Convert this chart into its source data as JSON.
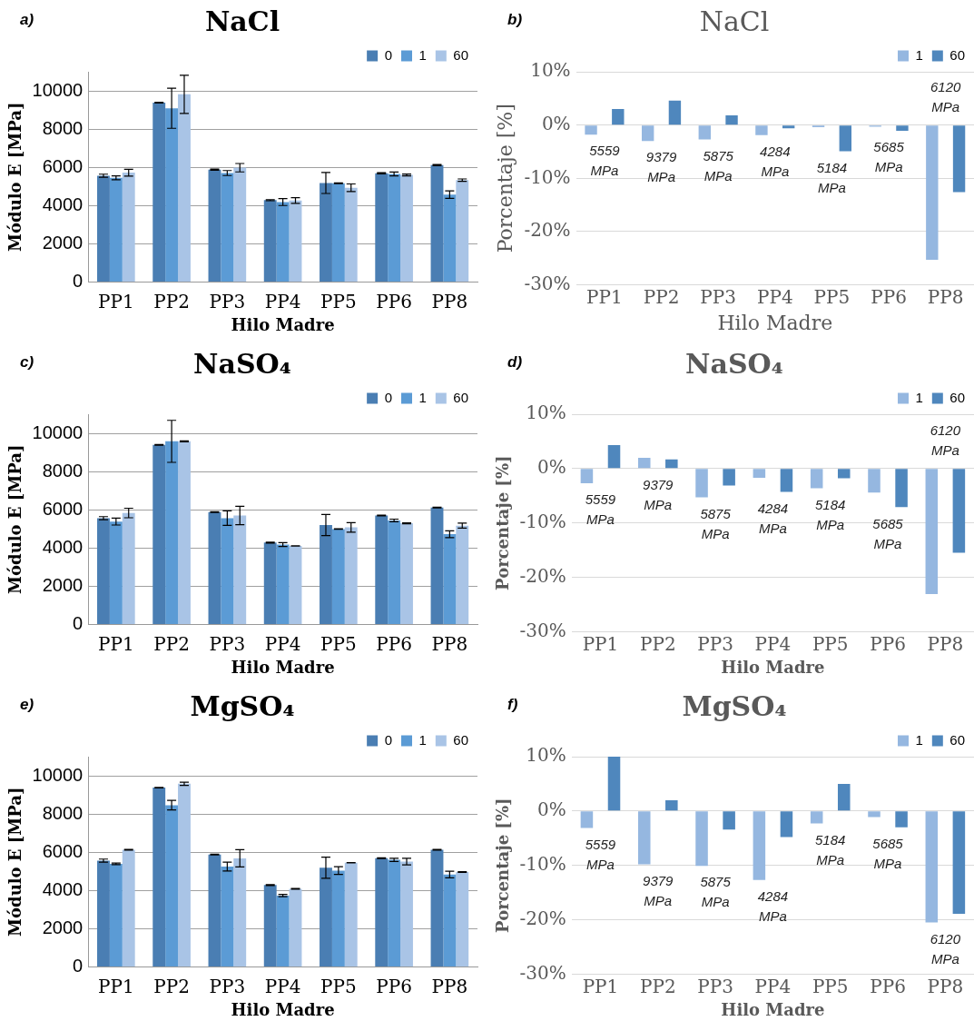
{
  "chart_data": [
    {
      "type": "bar",
      "title": "NaCl",
      "xlabel": "Hilo Madre",
      "ylabel": "Módulo E [MPa]",
      "categories": [
        "PP1",
        "PP2",
        "PP3",
        "PP4",
        "PP5",
        "PP6",
        "PP8"
      ],
      "ylim": [
        0,
        11000
      ],
      "yticks": [
        0,
        2000,
        4000,
        6000,
        8000,
        10000
      ],
      "grid": "y",
      "legend": "top right",
      "annotations": [
        "a)"
      ],
      "series": [
        {
          "name": "0",
          "color": "#4a7eb3",
          "values": [
            5560,
            9380,
            5880,
            4280,
            5180,
            5690,
            6120
          ],
          "errors": [
            80,
            20,
            30,
            30,
            550,
            30,
            30
          ]
        },
        {
          "name": "1",
          "color": "#5b9bd5",
          "values": [
            5450,
            9090,
            5700,
            4180,
            5160,
            5650,
            4570
          ],
          "errors": [
            100,
            1050,
            130,
            180,
            20,
            100,
            200
          ]
        },
        {
          "name": "60",
          "color": "#a9c4e6",
          "values": [
            5720,
            9820,
            5980,
            4260,
            4930,
            5600,
            5330
          ],
          "errors": [
            180,
            1000,
            220,
            150,
            200,
            50,
            60
          ]
        }
      ]
    },
    {
      "type": "bar",
      "title": "NaCl",
      "xlabel": "Hilo Madre",
      "ylabel": "Porcentaje [%]",
      "categories": [
        "PP1",
        "PP2",
        "PP3",
        "PP4",
        "PP5",
        "PP6",
        "PP8"
      ],
      "ylim": [
        -30,
        10
      ],
      "yticks": [
        {
          "value": -30,
          "label": "-30%"
        },
        {
          "value": -20,
          "label": "-20%"
        },
        {
          "value": -10,
          "label": "-10%"
        },
        {
          "value": 0,
          "label": "0%"
        },
        {
          "value": 10,
          "label": "10%"
        }
      ],
      "grid": "y",
      "legend": "top right",
      "annotations": [
        "b)",
        "5559 MPa",
        "9379 MPa",
        "5875 MPa",
        "4284 MPa",
        "5184 MPa",
        "5685 MPa",
        "6120 MPa"
      ],
      "series": [
        {
          "name": "1",
          "color": "#95b7e0",
          "values": [
            -1.8,
            -3.0,
            -2.7,
            -1.9,
            -0.4,
            -0.3,
            -25.3
          ]
        },
        {
          "name": "60",
          "color": "#4f87bd",
          "values": [
            3.0,
            4.6,
            1.8,
            -0.6,
            -4.9,
            -1.1,
            -12.6
          ]
        }
      ]
    },
    {
      "type": "bar",
      "title": "NaSO₄",
      "xlabel": "Hilo Madre",
      "ylabel": "Módulo E [MPa]",
      "categories": [
        "PP1",
        "PP2",
        "PP3",
        "PP4",
        "PP5",
        "PP6",
        "PP8"
      ],
      "ylim": [
        0,
        11000
      ],
      "yticks": [
        0,
        2000,
        4000,
        6000,
        8000,
        10000
      ],
      "grid": "y",
      "legend": "top right",
      "annotations": [
        "c)"
      ],
      "series": [
        {
          "name": "0",
          "color": "#4a7eb3",
          "values": [
            5560,
            9400,
            5880,
            4280,
            5200,
            5700,
            6120
          ],
          "errors": [
            80,
            20,
            20,
            20,
            550,
            20,
            20
          ]
        },
        {
          "name": "1",
          "color": "#5b9bd5",
          "values": [
            5380,
            9580,
            5560,
            4180,
            4990,
            5440,
            4720
          ],
          "errors": [
            180,
            1100,
            380,
            100,
            10,
            70,
            180
          ]
        },
        {
          "name": "60",
          "color": "#a9c4e6",
          "values": [
            5830,
            9580,
            5700,
            4110,
            5080,
            5290,
            5170
          ],
          "errors": [
            250,
            20,
            480,
            10,
            250,
            20,
            130
          ]
        }
      ]
    },
    {
      "type": "bar",
      "title": "NaSO₄",
      "xlabel": "Hilo Madre",
      "ylabel": "Porcentaje [%]",
      "categories": [
        "PP1",
        "PP2",
        "PP3",
        "PP4",
        "PP5",
        "PP6",
        "PP8"
      ],
      "ylim": [
        -30,
        10
      ],
      "yticks": [
        {
          "value": -30,
          "label": "-30%"
        },
        {
          "value": -20,
          "label": "-20%"
        },
        {
          "value": -10,
          "label": "-10%"
        },
        {
          "value": 0,
          "label": "0%"
        },
        {
          "value": 10,
          "label": "10%"
        }
      ],
      "grid": "y",
      "legend": "top right",
      "annotations": [
        "d)",
        "5559 MPa",
        "9379 MPa",
        "5875 MPa",
        "4284 MPa",
        "5184 MPa",
        "5685 MPa",
        "6120 MPa"
      ],
      "series": [
        {
          "name": "1",
          "color": "#95b7e0",
          "values": [
            -2.7,
            2.0,
            -5.3,
            -1.7,
            -3.6,
            -4.4,
            -23.1
          ]
        },
        {
          "name": "60",
          "color": "#4f87bd",
          "values": [
            4.3,
            1.7,
            -3.1,
            -4.3,
            -1.8,
            -7.1,
            -15.5
          ]
        }
      ]
    },
    {
      "type": "bar",
      "title": "MgSO₄",
      "xlabel": "Hilo Madre",
      "ylabel": "Módulo E [MPa]",
      "categories": [
        "PP1",
        "PP2",
        "PP3",
        "PP4",
        "PP5",
        "PP6",
        "PP8"
      ],
      "ylim": [
        0,
        11000
      ],
      "yticks": [
        0,
        2000,
        4000,
        6000,
        8000,
        10000
      ],
      "grid": "y",
      "legend": "top right",
      "annotations": [
        "e)"
      ],
      "series": [
        {
          "name": "0",
          "color": "#4a7eb3",
          "values": [
            5560,
            9380,
            5880,
            4280,
            5190,
            5690,
            6130
          ],
          "errors": [
            80,
            10,
            20,
            20,
            550,
            20,
            20
          ]
        },
        {
          "name": "1",
          "color": "#5b9bd5",
          "values": [
            5390,
            8460,
            5250,
            3730,
            5040,
            5600,
            4830
          ],
          "errors": [
            40,
            250,
            230,
            60,
            200,
            80,
            170
          ]
        },
        {
          "name": "60",
          "color": "#a9c4e6",
          "values": [
            6130,
            9580,
            5680,
            4080,
            5450,
            5510,
            4960
          ],
          "errors": [
            20,
            80,
            450,
            20,
            10,
            170,
            20
          ]
        }
      ]
    },
    {
      "type": "bar",
      "title": "MgSO₄",
      "xlabel": "Hilo Madre",
      "ylabel": "Porcentaje [%]",
      "categories": [
        "PP1",
        "PP2",
        "PP3",
        "PP4",
        "PP5",
        "PP6",
        "PP8"
      ],
      "ylim": [
        -30,
        10
      ],
      "yticks": [
        {
          "value": -30,
          "label": "-30%"
        },
        {
          "value": -20,
          "label": "-20%"
        },
        {
          "value": -10,
          "label": "-10%"
        },
        {
          "value": 0,
          "label": "0%"
        },
        {
          "value": 10,
          "label": "10%"
        }
      ],
      "grid": "y",
      "legend": "top right",
      "annotations": [
        "f)",
        "5559 MPa",
        "9379 MPa",
        "5875 MPa",
        "4284 MPa",
        "5184 MPa",
        "5685 MPa",
        "6120 MPa"
      ],
      "series": [
        {
          "name": "1",
          "color": "#95b7e0",
          "values": [
            -3.1,
            -9.8,
            -10.1,
            -12.7,
            -2.3,
            -1.1,
            -20.5
          ]
        },
        {
          "name": "60",
          "color": "#4f87bd",
          "values": [
            10,
            2.0,
            -3.4,
            -4.8,
            5.0,
            -3.0,
            -18.9
          ]
        }
      ]
    }
  ]
}
